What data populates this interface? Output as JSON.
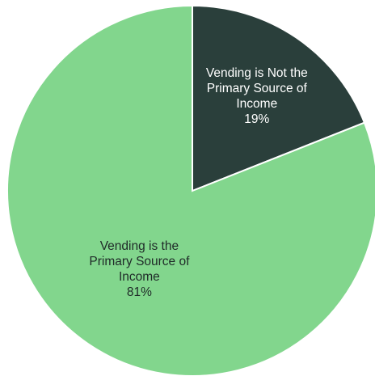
{
  "chart_data": {
    "type": "pie",
    "slices": [
      {
        "label_lines": [
          "Vending is Not the",
          "Primary Source of",
          "Income"
        ],
        "value": 19,
        "value_label": "19%",
        "color": "#2a3f3b",
        "text_color": "#ffffff"
      },
      {
        "label_lines": [
          "Vending is the",
          "Primary Source of",
          "Income"
        ],
        "value": 81,
        "value_label": "81%",
        "color": "#82d68d",
        "text_color": "#1f2a28"
      }
    ]
  }
}
